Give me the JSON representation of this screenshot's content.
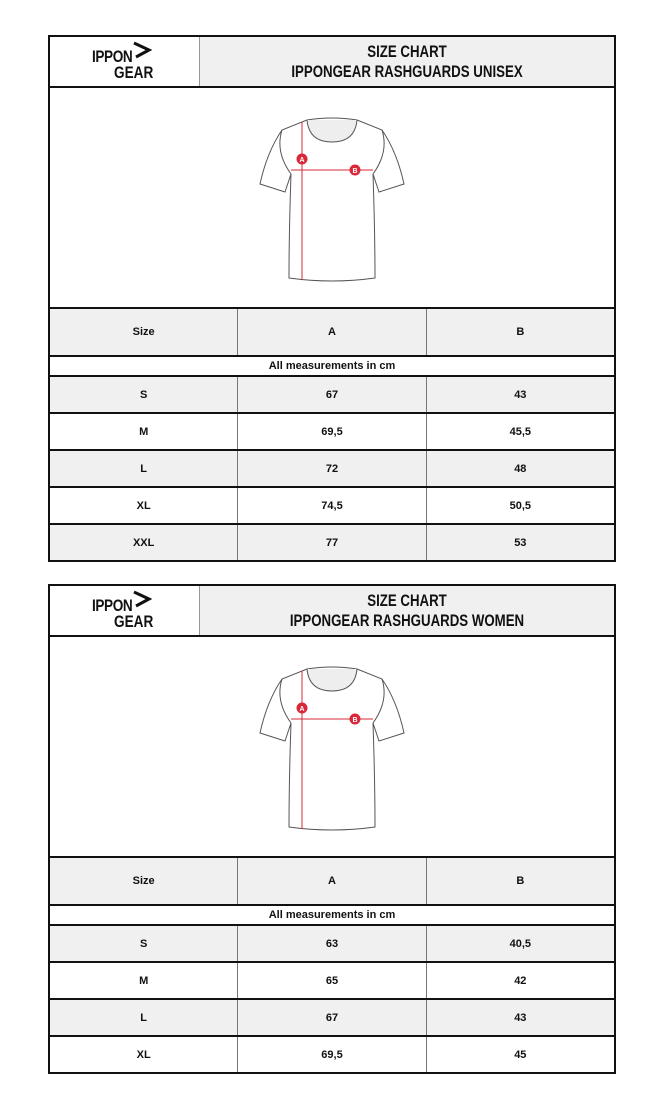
{
  "logo": {
    "line1": "IPPON",
    "line2": "GEAR"
  },
  "charts": [
    {
      "title1": "SIZE CHART",
      "title2": "IPPONGEAR RASHGUARDS UNISEX",
      "columns": [
        "Size",
        "A",
        "B"
      ],
      "note": "All measurements in cm",
      "rows": [
        [
          "S",
          "67",
          "43"
        ],
        [
          "M",
          "69,5",
          "45,5"
        ],
        [
          "L",
          "72",
          "48"
        ],
        [
          "XL",
          "74,5",
          "50,5"
        ],
        [
          "XXL",
          "77",
          "53"
        ]
      ]
    },
    {
      "title1": "SIZE CHART",
      "title2": "IPPONGEAR RASHGUARDS WOMEN",
      "columns": [
        "Size",
        "A",
        "B"
      ],
      "note": "All measurements in cm",
      "rows": [
        [
          "S",
          "63",
          "40,5"
        ],
        [
          "M",
          "65",
          "42"
        ],
        [
          "L",
          "67",
          "43"
        ],
        [
          "XL",
          "69,5",
          "45"
        ]
      ]
    }
  ],
  "diagram": {
    "labels": [
      "A",
      "B"
    ],
    "accent": "#d8283a"
  }
}
